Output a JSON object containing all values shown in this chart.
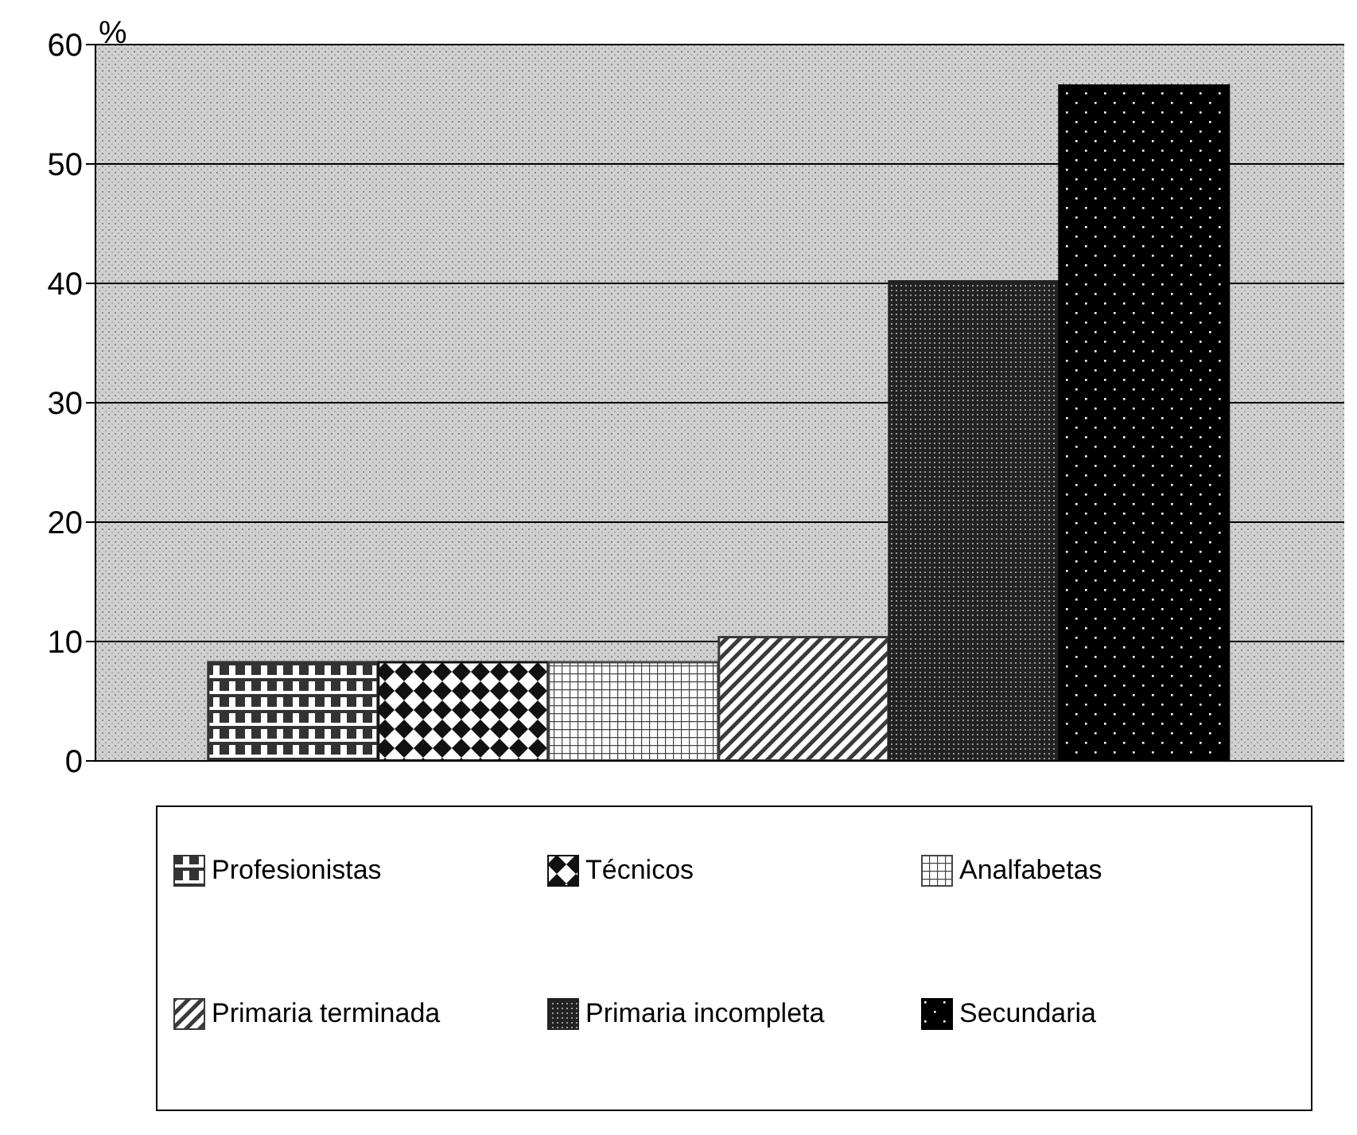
{
  "chart_data": {
    "type": "bar",
    "ylabel": "%",
    "categories": [
      null
    ],
    "series": [
      {
        "name": "Profesionistas",
        "color": "#333333",
        "values": [
          8.3
        ]
      },
      {
        "name": "Técnicos",
        "color": "#111111",
        "values": [
          8.3
        ]
      },
      {
        "name": "Analfabetas",
        "color": "#444444",
        "values": [
          8.3
        ]
      },
      {
        "name": "Primaria terminada",
        "color": "#3a3a3a",
        "values": [
          10.4
        ]
      },
      {
        "name": "Primaria incompleta",
        "color": "#222222",
        "values": [
          40.2
        ]
      },
      {
        "name": "Secundaria",
        "color": "#000000",
        "values": [
          56.6
        ]
      }
    ],
    "ylim": [
      0,
      60
    ],
    "yticks": [
      0,
      10,
      20,
      30,
      40,
      50,
      60
    ],
    "grid": "y",
    "legend": "bottom"
  }
}
